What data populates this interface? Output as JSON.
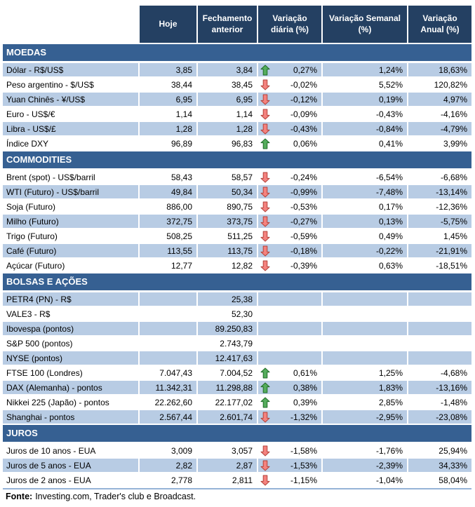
{
  "colors": {
    "header_bg": "#244062",
    "section_bg": "#366092",
    "row_shade": "#B8CCE4",
    "gridline": "#ffffff",
    "arrow_up": "#55ad5c",
    "arrow_up_border": "#1f6b28",
    "arrow_down": "#f4827e",
    "arrow_down_border": "#b2423a"
  },
  "source": {
    "label": "Fonte:",
    "text": "Investing.com, Trader's club e Broadcast."
  },
  "chart_data": {
    "type": "table",
    "title": "",
    "columns": [
      "",
      "Hoje",
      "Fechamento anterior",
      "Variação diária (%)",
      "Variação Semanal (%)",
      "Variação Anual (%)"
    ],
    "sections": [
      {
        "id": "moedas",
        "title": "MOEDAS",
        "first_row_shaded": true,
        "rows": [
          {
            "label": "Dólar - R$/US$",
            "hoje": "3,85",
            "fechamento": "3,84",
            "arrow": "up",
            "var_diaria": "0,27%",
            "var_semanal": "1,24%",
            "var_anual": "18,63%"
          },
          {
            "label": "Peso argentino - $/US$",
            "hoje": "38,44",
            "fechamento": "38,45",
            "arrow": "down",
            "var_diaria": "-0,02%",
            "var_semanal": "5,52%",
            "var_anual": "120,82%"
          },
          {
            "label": "Yuan Chinês - ¥/US$",
            "hoje": "6,95",
            "fechamento": "6,95",
            "arrow": "down",
            "var_diaria": "-0,12%",
            "var_semanal": "0,19%",
            "var_anual": "4,97%"
          },
          {
            "label": "Euro - US$/€",
            "hoje": "1,14",
            "fechamento": "1,14",
            "arrow": "down",
            "var_diaria": "-0,09%",
            "var_semanal": "-0,43%",
            "var_anual": "-4,16%"
          },
          {
            "label": "Libra - US$/£",
            "hoje": "1,28",
            "fechamento": "1,28",
            "arrow": "down",
            "var_diaria": "-0,43%",
            "var_semanal": "-0,84%",
            "var_anual": "-4,79%"
          },
          {
            "label": "Índice DXY",
            "hoje": "96,89",
            "fechamento": "96,83",
            "arrow": "up",
            "var_diaria": "0,06%",
            "var_semanal": "0,41%",
            "var_anual": "3,99%"
          }
        ]
      },
      {
        "id": "commodities",
        "title": "COMMODITIES",
        "first_row_shaded": false,
        "rows": [
          {
            "label": "Brent (spot) - US$/barril",
            "hoje": "58,43",
            "fechamento": "58,57",
            "arrow": "down",
            "var_diaria": "-0,24%",
            "var_semanal": "-6,54%",
            "var_anual": "-6,68%"
          },
          {
            "label": "WTI (Futuro) - US$/barril",
            "hoje": "49,84",
            "fechamento": "50,34",
            "arrow": "down",
            "var_diaria": "-0,99%",
            "var_semanal": "-7,48%",
            "var_anual": "-13,14%"
          },
          {
            "label": "Soja (Futuro)",
            "hoje": "886,00",
            "fechamento": "890,75",
            "arrow": "down",
            "var_diaria": "-0,53%",
            "var_semanal": "0,17%",
            "var_anual": "-12,36%"
          },
          {
            "label": "Milho (Futuro)",
            "hoje": "372,75",
            "fechamento": "373,75",
            "arrow": "down",
            "var_diaria": "-0,27%",
            "var_semanal": "0,13%",
            "var_anual": "-5,75%"
          },
          {
            "label": "Trigo (Futuro)",
            "hoje": "508,25",
            "fechamento": "511,25",
            "arrow": "down",
            "var_diaria": "-0,59%",
            "var_semanal": "0,49%",
            "var_anual": "1,45%"
          },
          {
            "label": "Café (Futuro)",
            "hoje": "113,55",
            "fechamento": "113,75",
            "arrow": "down",
            "var_diaria": "-0,18%",
            "var_semanal": "-0,22%",
            "var_anual": "-21,91%"
          },
          {
            "label": "Açúcar (Futuro)",
            "hoje": "12,77",
            "fechamento": "12,82",
            "arrow": "down",
            "var_diaria": "-0,39%",
            "var_semanal": "0,63%",
            "var_anual": "-18,51%"
          }
        ]
      },
      {
        "id": "bolsas-e-acoes",
        "title": "BOLSAS E AÇÕES",
        "first_row_shaded": true,
        "rows": [
          {
            "label": "PETR4 (PN) - R$",
            "hoje": "",
            "fechamento": "25,38",
            "arrow": "",
            "var_diaria": "",
            "var_semanal": "",
            "var_anual": ""
          },
          {
            "label": "VALE3 - R$",
            "hoje": "",
            "fechamento": "52,30",
            "arrow": "",
            "var_diaria": "",
            "var_semanal": "",
            "var_anual": ""
          },
          {
            "label": "Ibovespa (pontos)",
            "hoje": "",
            "fechamento": "89.250,83",
            "arrow": "",
            "var_diaria": "",
            "var_semanal": "",
            "var_anual": ""
          },
          {
            "label": "S&P 500 (pontos)",
            "hoje": "",
            "fechamento": "2.743,79",
            "arrow": "",
            "var_diaria": "",
            "var_semanal": "",
            "var_anual": ""
          },
          {
            "label": "NYSE (pontos)",
            "hoje": "",
            "fechamento": "12.417,63",
            "arrow": "",
            "var_diaria": "",
            "var_semanal": "",
            "var_anual": ""
          },
          {
            "label": "FTSE 100 (Londres)",
            "hoje": "7.047,43",
            "fechamento": "7.004,52",
            "arrow": "up",
            "var_diaria": "0,61%",
            "var_semanal": "1,25%",
            "var_anual": "-4,68%"
          },
          {
            "label": "DAX (Alemanha) - pontos",
            "hoje": "11.342,31",
            "fechamento": "11.298,88",
            "arrow": "up",
            "var_diaria": "0,38%",
            "var_semanal": "1,83%",
            "var_anual": "-13,16%"
          },
          {
            "label": "Nikkei 225 (Japão) - pontos",
            "hoje": "22.262,60",
            "fechamento": "22.177,02",
            "arrow": "up",
            "var_diaria": "0,39%",
            "var_semanal": "2,85%",
            "var_anual": "-1,48%"
          },
          {
            "label": "Shanghai - pontos",
            "hoje": "2.567,44",
            "fechamento": "2.601,74",
            "arrow": "down",
            "var_diaria": "-1,32%",
            "var_semanal": "-2,95%",
            "var_anual": "-23,08%"
          }
        ]
      },
      {
        "id": "juros",
        "title": "JUROS",
        "first_row_shaded": false,
        "rows": [
          {
            "label": "Juros de 10 anos - EUA",
            "hoje": "3,009",
            "fechamento": "3,057",
            "arrow": "down",
            "var_diaria": "-1,58%",
            "var_semanal": "-1,76%",
            "var_anual": "25,94%"
          },
          {
            "label": "Juros de 5 anos - EUA",
            "hoje": "2,82",
            "fechamento": "2,87",
            "arrow": "down",
            "var_diaria": "-1,53%",
            "var_semanal": "-2,39%",
            "var_anual": "34,33%"
          },
          {
            "label": "Juros de 2 anos - EUA",
            "hoje": "2,778",
            "fechamento": "2,811",
            "arrow": "down",
            "var_diaria": "-1,15%",
            "var_semanal": "-1,04%",
            "var_anual": "58,04%"
          }
        ]
      }
    ]
  }
}
